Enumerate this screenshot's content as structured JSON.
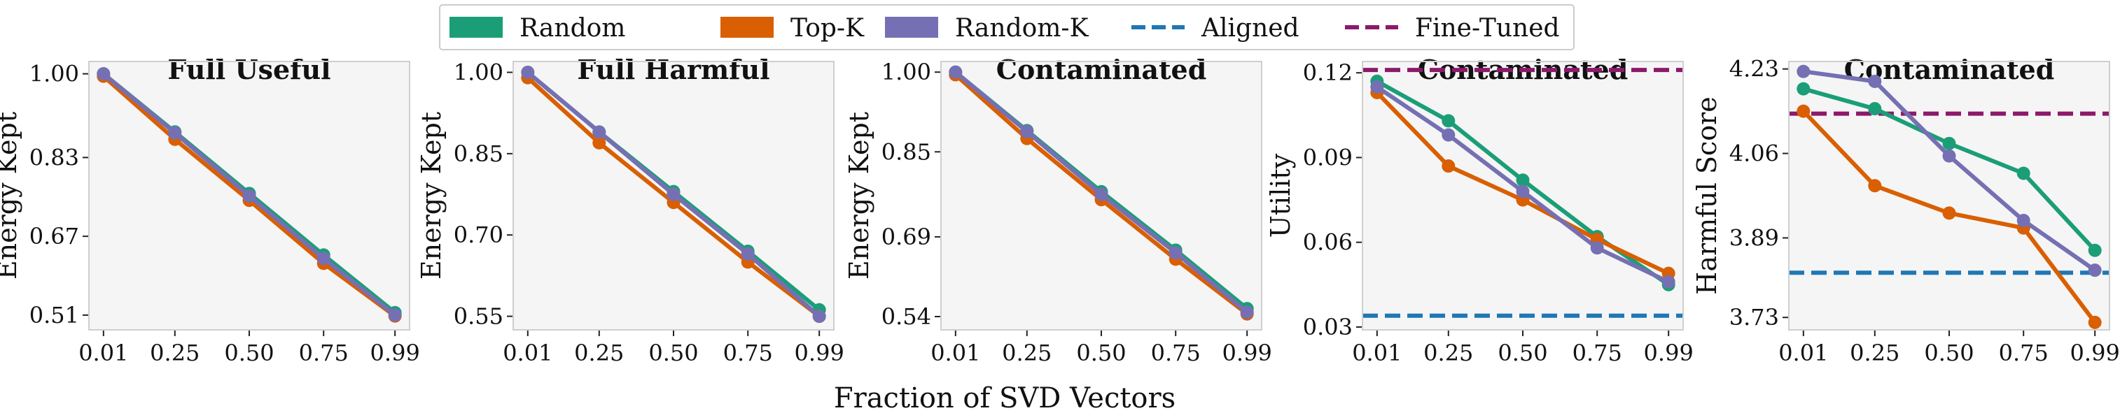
{
  "legend": {
    "entries": [
      {
        "label": "Random",
        "style": "patch",
        "color": "#1b9e77"
      },
      {
        "label": "Top-K",
        "style": "patch",
        "color": "#d95f02"
      },
      {
        "label": "Random-K",
        "style": "patch",
        "color": "#7570b3"
      },
      {
        "label": "Aligned",
        "style": "dashed",
        "color": "#1f77b4"
      },
      {
        "label": "Fine-Tuned",
        "style": "dashed",
        "color": "#8c1a6a"
      }
    ]
  },
  "xlabel": "Fraction of SVD Vectors",
  "chart_data": [
    {
      "type": "line",
      "title": "Full Useful",
      "ylabel": "Energy Kept",
      "x": [
        0.01,
        0.25,
        0.5,
        0.75,
        0.99
      ],
      "xticks": [
        "0.01",
        "0.25",
        "0.50",
        "0.75",
        "0.99"
      ],
      "yticks": [
        0.51,
        0.67,
        0.83,
        1.0
      ],
      "ytick_labels": [
        "0.51",
        "0.67",
        "0.83",
        "1.00"
      ],
      "ylim": [
        0.48,
        1.025
      ],
      "series": [
        {
          "name": "Random",
          "color": "#1b9e77",
          "values": [
            1.0,
            0.882,
            0.757,
            0.632,
            0.515
          ]
        },
        {
          "name": "Top-K",
          "color": "#d95f02",
          "values": [
            0.995,
            0.867,
            0.743,
            0.615,
            0.508
          ]
        },
        {
          "name": "Random-K",
          "color": "#7570b3",
          "values": [
            1.0,
            0.88,
            0.752,
            0.625,
            0.51
          ]
        }
      ],
      "hlines": []
    },
    {
      "type": "line",
      "title": "Full Harmful",
      "ylabel": "Energy Kept",
      "x": [
        0.01,
        0.25,
        0.5,
        0.75,
        0.99
      ],
      "xticks": [
        "0.01",
        "0.25",
        "0.50",
        "0.75",
        "0.99"
      ],
      "yticks": [
        0.55,
        0.7,
        0.85,
        1.0
      ],
      "ytick_labels": [
        "0.55",
        "0.70",
        "0.85",
        "1.00"
      ],
      "ylim": [
        0.525,
        1.02
      ],
      "series": [
        {
          "name": "Random",
          "color": "#1b9e77",
          "values": [
            1.0,
            0.89,
            0.78,
            0.67,
            0.562
          ]
        },
        {
          "name": "Top-K",
          "color": "#d95f02",
          "values": [
            0.99,
            0.87,
            0.76,
            0.65,
            0.55
          ]
        },
        {
          "name": "Random-K",
          "color": "#7570b3",
          "values": [
            1.0,
            0.89,
            0.775,
            0.665,
            0.55
          ]
        }
      ],
      "hlines": []
    },
    {
      "type": "line",
      "title": "Contaminated",
      "ylabel": "Energy Kept",
      "x": [
        0.01,
        0.25,
        0.5,
        0.75,
        0.99
      ],
      "xticks": [
        "0.01",
        "0.25",
        "0.50",
        "0.75",
        "0.99"
      ],
      "yticks": [
        0.54,
        0.69,
        0.85,
        1.0
      ],
      "ytick_labels": [
        "0.54",
        "0.69",
        "0.85",
        "1.00"
      ],
      "ylim": [
        0.515,
        1.02
      ],
      "series": [
        {
          "name": "Random",
          "color": "#1b9e77",
          "values": [
            1.0,
            0.89,
            0.775,
            0.665,
            0.555
          ]
        },
        {
          "name": "Top-K",
          "color": "#d95f02",
          "values": [
            0.995,
            0.875,
            0.76,
            0.648,
            0.545
          ]
        },
        {
          "name": "Random-K",
          "color": "#7570b3",
          "values": [
            1.0,
            0.888,
            0.77,
            0.66,
            0.548
          ]
        }
      ],
      "hlines": []
    },
    {
      "type": "line",
      "title": "Contaminated",
      "ylabel": "Utility",
      "x": [
        0.01,
        0.25,
        0.5,
        0.75,
        0.99
      ],
      "xticks": [
        "0.01",
        "0.25",
        "0.50",
        "0.75",
        "0.99"
      ],
      "yticks": [
        0.03,
        0.06,
        0.09,
        0.12
      ],
      "ytick_labels": [
        "0.03",
        "0.06",
        "0.09",
        "0.12"
      ],
      "ylim": [
        0.029,
        0.124
      ],
      "series": [
        {
          "name": "Random",
          "color": "#1b9e77",
          "values": [
            0.117,
            0.103,
            0.082,
            0.062,
            0.045
          ]
        },
        {
          "name": "Top-K",
          "color": "#d95f02",
          "values": [
            0.113,
            0.087,
            0.075,
            0.061,
            0.049
          ]
        },
        {
          "name": "Random-K",
          "color": "#7570b3",
          "values": [
            0.115,
            0.098,
            0.078,
            0.058,
            0.046
          ]
        }
      ],
      "hlines": [
        {
          "name": "Aligned",
          "color": "#1f77b4",
          "value": 0.034
        },
        {
          "name": "Fine-Tuned",
          "color": "#8c1a6a",
          "value": 0.121
        }
      ]
    },
    {
      "type": "line",
      "title": "Contaminated",
      "ylabel": "Harmful Score",
      "x": [
        0.01,
        0.25,
        0.5,
        0.75,
        0.99
      ],
      "xticks": [
        "0.01",
        "0.25",
        "0.50",
        "0.75",
        "0.99"
      ],
      "yticks": [
        3.73,
        3.89,
        4.06,
        4.23
      ],
      "ytick_labels": [
        "3.73",
        "3.89",
        "4.06",
        "4.23"
      ],
      "ylim": [
        3.705,
        4.245
      ],
      "series": [
        {
          "name": "Random",
          "color": "#1b9e77",
          "values": [
            4.19,
            4.15,
            4.08,
            4.02,
            3.865
          ]
        },
        {
          "name": "Top-K",
          "color": "#d95f02",
          "values": [
            4.145,
            3.995,
            3.94,
            3.91,
            3.72
          ]
        },
        {
          "name": "Random-K",
          "color": "#7570b3",
          "values": [
            4.225,
            4.205,
            4.055,
            3.925,
            3.825
          ]
        }
      ],
      "hlines": [
        {
          "name": "Aligned",
          "color": "#1f77b4",
          "value": 3.82
        },
        {
          "name": "Fine-Tuned",
          "color": "#8c1a6a",
          "value": 4.14
        }
      ]
    }
  ]
}
